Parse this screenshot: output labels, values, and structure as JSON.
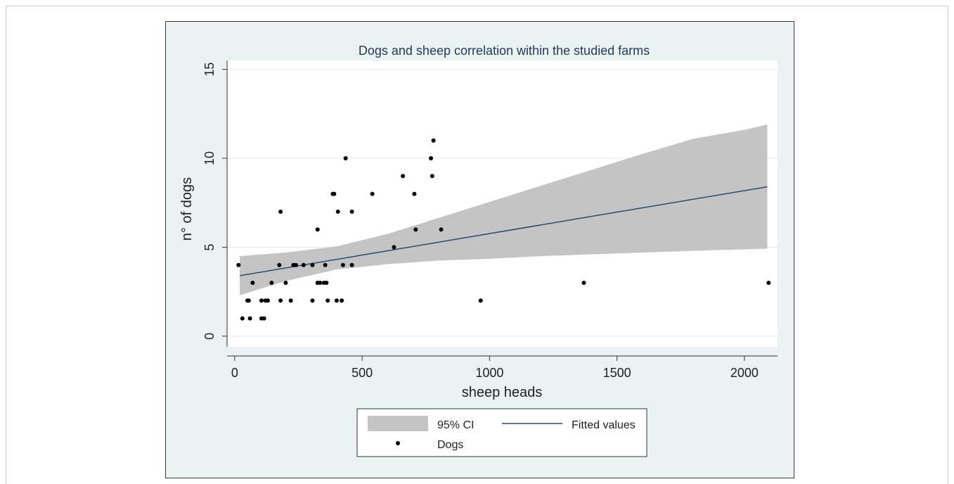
{
  "chart_data": {
    "type": "scatter",
    "title": "Dogs and sheep correlation within the studied farms",
    "xlabel": "sheep heads",
    "ylabel": "n° of dogs",
    "xlim": [
      -30,
      2130
    ],
    "ylim": [
      -0.6,
      15.5
    ],
    "x_ticks": [
      0,
      500,
      1000,
      1500,
      2000
    ],
    "y_ticks": [
      0,
      5,
      10,
      15
    ],
    "grid": "horizontal",
    "legend_position": "bottom",
    "legend": {
      "ci_label": "95% CI",
      "fit_label": "Fitted values",
      "points_label": "Dogs"
    },
    "colors": {
      "background": "#eaf2f3",
      "plot_area": "#ffffff",
      "ci_band": "#c4c4c4",
      "fit_line": "#1f4e79",
      "points": "#000000",
      "grid": "#e4ecee"
    },
    "fitted_line": {
      "x": [
        20,
        2090
      ],
      "y": [
        3.4,
        8.4
      ]
    },
    "ci_band": {
      "x": [
        20,
        200,
        400,
        600,
        800,
        1000,
        1200,
        1400,
        1600,
        1800,
        2000,
        2090
      ],
      "upper": [
        4.5,
        4.7,
        5.05,
        5.75,
        6.65,
        7.55,
        8.45,
        9.35,
        10.25,
        11.1,
        11.6,
        11.9
      ],
      "lower": [
        2.3,
        3.1,
        3.75,
        4.05,
        4.25,
        4.35,
        4.5,
        4.6,
        4.7,
        4.8,
        4.88,
        4.92
      ]
    },
    "series": [
      {
        "name": "Dogs",
        "points": [
          {
            "x": 15,
            "y": 4
          },
          {
            "x": 30,
            "y": 1
          },
          {
            "x": 50,
            "y": 2
          },
          {
            "x": 55,
            "y": 2
          },
          {
            "x": 60,
            "y": 1
          },
          {
            "x": 70,
            "y": 3
          },
          {
            "x": 105,
            "y": 2
          },
          {
            "x": 105,
            "y": 1
          },
          {
            "x": 115,
            "y": 1
          },
          {
            "x": 120,
            "y": 2
          },
          {
            "x": 130,
            "y": 2
          },
          {
            "x": 145,
            "y": 3
          },
          {
            "x": 175,
            "y": 4
          },
          {
            "x": 180,
            "y": 7
          },
          {
            "x": 180,
            "y": 2
          },
          {
            "x": 200,
            "y": 3
          },
          {
            "x": 220,
            "y": 2
          },
          {
            "x": 230,
            "y": 4
          },
          {
            "x": 240,
            "y": 4
          },
          {
            "x": 270,
            "y": 4
          },
          {
            "x": 305,
            "y": 4
          },
          {
            "x": 305,
            "y": 2
          },
          {
            "x": 325,
            "y": 6
          },
          {
            "x": 325,
            "y": 3
          },
          {
            "x": 335,
            "y": 3
          },
          {
            "x": 350,
            "y": 3
          },
          {
            "x": 355,
            "y": 4
          },
          {
            "x": 360,
            "y": 3
          },
          {
            "x": 365,
            "y": 2
          },
          {
            "x": 385,
            "y": 8
          },
          {
            "x": 390,
            "y": 8
          },
          {
            "x": 400,
            "y": 2
          },
          {
            "x": 405,
            "y": 7
          },
          {
            "x": 420,
            "y": 2
          },
          {
            "x": 425,
            "y": 4
          },
          {
            "x": 435,
            "y": 10
          },
          {
            "x": 460,
            "y": 7
          },
          {
            "x": 460,
            "y": 4
          },
          {
            "x": 540,
            "y": 8
          },
          {
            "x": 625,
            "y": 5
          },
          {
            "x": 660,
            "y": 9
          },
          {
            "x": 705,
            "y": 8
          },
          {
            "x": 710,
            "y": 6
          },
          {
            "x": 770,
            "y": 10
          },
          {
            "x": 775,
            "y": 9
          },
          {
            "x": 780,
            "y": 11
          },
          {
            "x": 810,
            "y": 6
          },
          {
            "x": 965,
            "y": 2
          },
          {
            "x": 1370,
            "y": 3
          },
          {
            "x": 2095,
            "y": 3
          }
        ]
      }
    ]
  }
}
